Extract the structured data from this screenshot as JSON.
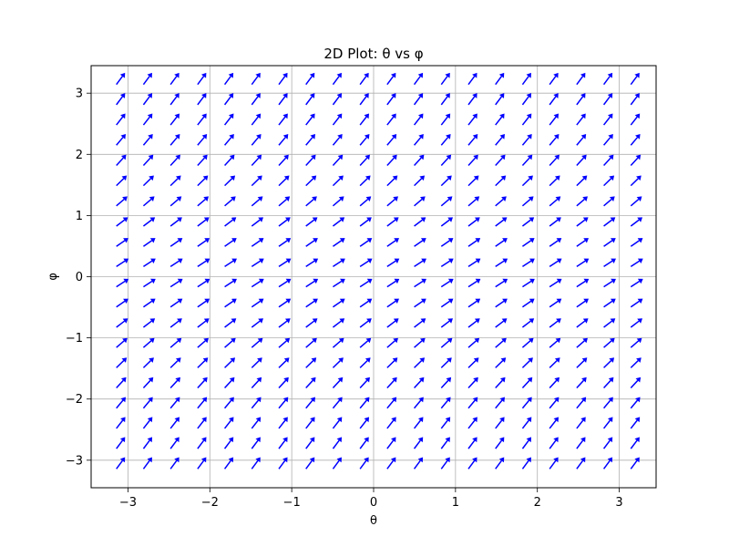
{
  "chart_data": {
    "type": "quiver",
    "title": "2D Plot: θ vs φ",
    "xlabel": "θ",
    "ylabel": "φ",
    "xlim": [
      -3.45,
      3.45
    ],
    "ylim": [
      -3.45,
      3.45
    ],
    "grid": true,
    "x_ticks": [
      -3,
      -2,
      -1,
      0,
      1,
      2,
      3
    ],
    "y_ticks": [
      -3,
      -2,
      -1,
      0,
      1,
      2,
      3
    ],
    "x_tick_labels": [
      "−3",
      "−2",
      "−1",
      "0",
      "1",
      "2",
      "3"
    ],
    "y_tick_labels": [
      "−3",
      "−2",
      "−1",
      "0",
      "1",
      "2",
      "3"
    ],
    "grid_x_range": [
      -3.14159,
      3.14159
    ],
    "grid_y_range": [
      -3.14159,
      3.14159
    ],
    "grid_points_per_axis": 20,
    "vector_field": {
      "u": "1",
      "v": "1 - 0.35*cos(y)",
      "note_visible": false
    },
    "arrow_color": "#0000ff",
    "grid_color": "#b0b0b0",
    "axes_color": "#000000"
  }
}
